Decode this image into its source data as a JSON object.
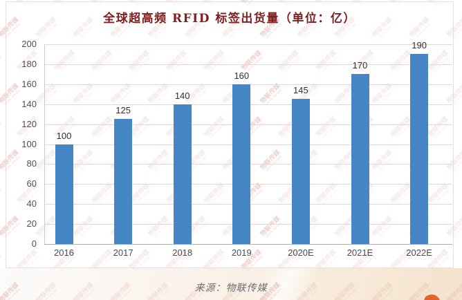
{
  "chart_data": {
    "type": "bar",
    "title": "全球超高频 RFID 标签出货量（单位：亿）",
    "categories": [
      "2016",
      "2017",
      "2018",
      "2019",
      "2020E",
      "2021E",
      "2022E"
    ],
    "values": [
      100,
      125,
      140,
      160,
      145,
      170,
      190
    ],
    "xlabel": "",
    "ylabel": "",
    "ylim": [
      0,
      200
    ],
    "ytick_step": 20,
    "grid": true,
    "legend": "none",
    "bar_color": "#4686c5",
    "title_color": "#7d1f1f",
    "source": "来源：物联传媒"
  },
  "watermark": {
    "line1": "物联传媒",
    "line2": "Ulink media",
    "color": "#c4685c"
  },
  "accents": {
    "logo_fragment_color": "#e2632d"
  }
}
